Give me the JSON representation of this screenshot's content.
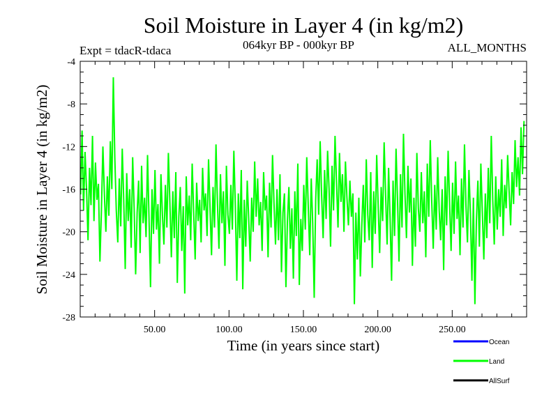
{
  "chart_data": {
    "type": "line",
    "title": "Soil Moisture in Layer 4 (in kg/m2)",
    "subtitle_left": "Expt = tdacR-tdaca",
    "subtitle_center": "064kyr BP - 000kyr BP",
    "subtitle_right": "ALL_MONTHS",
    "xlabel": "Time (in years since start)",
    "ylabel": "Soil Moisture in Layer 4 (in kg/m2)",
    "xlim": [
      0,
      300
    ],
    "ylim": [
      -28,
      -4
    ],
    "x_ticks": [
      50,
      100,
      150,
      200,
      250
    ],
    "x_tick_labels": [
      "50.00",
      "100.00",
      "150.00",
      "200.00",
      "250.00"
    ],
    "y_ticks": [
      -4,
      -8,
      -12,
      -16,
      -20,
      -24,
      -28
    ],
    "y_tick_labels": [
      "-4",
      "-8",
      "-12",
      "-16",
      "-20",
      "-24",
      "-28"
    ],
    "grid": false,
    "legend_position": "bottom-right",
    "series": [
      {
        "name": "Ocean",
        "color": "#0000ff",
        "x": [],
        "values": []
      },
      {
        "name": "Land",
        "color": "#00ff00",
        "x_start": 0.25,
        "x_step": 1,
        "values": [
          -16.5,
          -10.5,
          -18,
          -12.5,
          -16,
          -20.8,
          -14,
          -17.5,
          -11,
          -19,
          -13.5,
          -17,
          -15.5,
          -22.8,
          -18,
          -12,
          -16.5,
          -20,
          -14.8,
          -18.5,
          -11.5,
          -16,
          -5.5,
          -13,
          -18,
          -21,
          -15,
          -19.5,
          -12.2,
          -17,
          -23.5,
          -14.5,
          -19,
          -16,
          -21.5,
          -13,
          -17.8,
          -24,
          -18.2,
          -15.2,
          -22,
          -13.8,
          -19.2,
          -16.8,
          -20.5,
          -12.8,
          -18.8,
          -25.2,
          -16,
          -20.2,
          -14.2,
          -19.8,
          -17.4,
          -23,
          -14.6,
          -18.4,
          -21.2,
          -15.6,
          -19.6,
          -12.6,
          -17.2,
          -22.4,
          -16.2,
          -20.6,
          -14.4,
          -24.8,
          -18.6,
          -15.8,
          -21.8,
          -17.6,
          -25.8,
          -14.8,
          -19.4,
          -16.6,
          -20.8,
          -13.6,
          -18.2,
          -22.6,
          -15.4,
          -19,
          -17,
          -21,
          -14,
          -18,
          -16.4,
          -20.4,
          -13.2,
          -17.8,
          -22.2,
          -15.8,
          -19.6,
          -11.8,
          -17.4,
          -21.6,
          -14.6,
          -19.2,
          -16.2,
          -23.2,
          -13.8,
          -18.4,
          -20.2,
          -15.6,
          -19.8,
          -12.4,
          -17.6,
          -24.6,
          -16.4,
          -20.6,
          -14.2,
          -25.4,
          -17,
          -21.4,
          -15.2,
          -18.8,
          -22.8,
          -16.8,
          -20,
          -13.4,
          -18.6,
          -15,
          -19.4,
          -17.2,
          -21.8,
          -14.4,
          -18,
          -16.6,
          -22.4,
          -15.4,
          -19.6,
          -12.8,
          -17.4,
          -21.2,
          -16,
          -20.8,
          -14.6,
          -23.8,
          -18.2,
          -16.4,
          -25.2,
          -19,
          -15.8,
          -21.6,
          -17.8,
          -24.4,
          -16.2,
          -20.4,
          -13.6,
          -25,
          -18.8,
          -21.8,
          -15.6,
          -19.8,
          -13,
          -17.6,
          -22.2,
          -15,
          -19.2,
          -26.2,
          -17,
          -13.2,
          -18.4,
          -11.5,
          -16.6,
          -20.6,
          -14.2,
          -18.8,
          -12.4,
          -16,
          -21.4,
          -13.8,
          -18,
          -11,
          -15.4,
          -19.6,
          -12.6,
          -17.2,
          -14.6,
          -20,
          -13.4,
          -16.8,
          -19.4,
          -15.2,
          -18.6,
          -16.4,
          -26.8,
          -18.2,
          -22.6,
          -16.8,
          -24.2,
          -19.4,
          -15.6,
          -21,
          -13.2,
          -18.4,
          -20.8,
          -14.4,
          -23.4,
          -16.2,
          -20.2,
          -12.8,
          -17.6,
          -22,
          -15.8,
          -19,
          -11.6,
          -16.6,
          -21.2,
          -14,
          -18.8,
          -24.6,
          -15.2,
          -20.4,
          -12.2,
          -17,
          -22.8,
          -14.6,
          -19.6,
          -10.8,
          -16.4,
          -20.6,
          -13.8,
          -18.2,
          -15,
          -23.2,
          -16.8,
          -21.4,
          -12.6,
          -17.8,
          -20,
          -14.4,
          -19.2,
          -16.2,
          -22.4,
          -13.6,
          -18.6,
          -11.4,
          -17.2,
          -21.6,
          -15.6,
          -19.8,
          -13,
          -18,
          -20.8,
          -16,
          -23.6,
          -14.8,
          -19.4,
          -12.4,
          -17.4,
          -21.8,
          -15.4,
          -20.2,
          -13.4,
          -18.8,
          -16.6,
          -22.2,
          -15,
          -19.6,
          -11.8,
          -17.6,
          -21,
          -14.2,
          -18.4,
          -24.6,
          -16.8,
          -26.8,
          -19,
          -15.2,
          -21.4,
          -13.6,
          -18.2,
          -22.6,
          -16.4,
          -20.6,
          -14,
          -19.2,
          -11,
          -17,
          -21.2,
          -14.8,
          -19.8,
          -16,
          -18.6,
          -13.2,
          -20.4,
          -15.6,
          -17.8,
          -12.8,
          -16.2,
          -19.4,
          -14.4,
          -17.4,
          -11.4,
          -15.8,
          -13,
          -16.6,
          -10.2,
          -14.6,
          -9.6
        ]
      },
      {
        "name": "AllSurf",
        "color": "#000000",
        "x": [],
        "values": []
      }
    ]
  }
}
